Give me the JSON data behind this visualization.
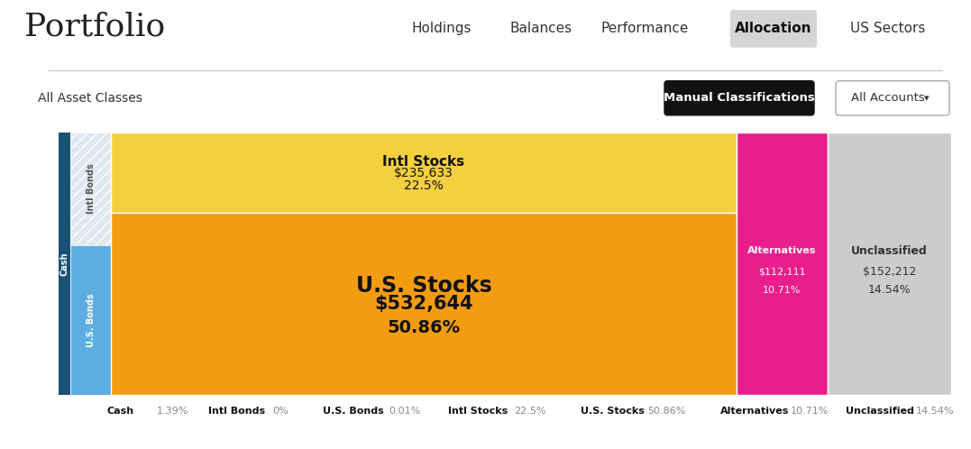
{
  "title": "Portfolio",
  "nav_items": [
    "Holdings",
    "Balances",
    "Performance",
    "Allocation",
    "US Sectors"
  ],
  "active_nav": "Allocation",
  "header_left": "All Asset Classes",
  "header_btn1": "Manual Classifications",
  "header_btn2": "All Accounts",
  "segments": [
    {
      "name": "Cash",
      "pct": 1.39,
      "value": null,
      "color": "#1a5276",
      "orientation": "vertical",
      "label_color": "white"
    },
    {
      "name": "Intl Bonds",
      "pct": 0.0,
      "value": null,
      "color": "#d6e4f0",
      "pattern": "///",
      "orientation": "vertical",
      "label_color": "#555555"
    },
    {
      "name": "U.S. Bonds",
      "pct": 0.01,
      "value": null,
      "color": "#5dade2",
      "orientation": "vertical",
      "label_color": "white"
    },
    {
      "name": "Intl Stocks",
      "pct": 22.5,
      "value": "$235,633",
      "color": "#f4d03f",
      "orientation": "horizontal_top",
      "label_color": "#222222"
    },
    {
      "name": "U.S. Stocks",
      "pct": 50.86,
      "value": "$532,644",
      "color": "#f39c12",
      "orientation": "horizontal_bottom",
      "label_color": "#111111"
    },
    {
      "name": "Alternatives",
      "pct": 10.71,
      "value": "$112,111",
      "color": "#e91e8c",
      "orientation": "vertical_right",
      "label_color": "white"
    },
    {
      "name": "Unclassified",
      "pct": 14.54,
      "value": "$152,212",
      "color": "#cccccc",
      "orientation": "vertical_right2",
      "label_color": "#333333"
    }
  ],
  "bottom_labels": [
    {
      "name": "Cash",
      "pct": "1.39%",
      "color": "#1a5276"
    },
    {
      "name": "Intl Bonds",
      "pct": "0%",
      "color": "#d6e4f0"
    },
    {
      "name": "U.S. Bonds",
      "pct": "0.01%",
      "color": "#5dade2"
    },
    {
      "name": "Intl Stocks",
      "pct": "22.5%",
      "color": "#f4d03f"
    },
    {
      "name": "U.S. Stocks",
      "pct": "50.86%",
      "color": "#f39c12"
    },
    {
      "name": "Alternatives",
      "pct": "10.71%",
      "color": "#e91e8c"
    },
    {
      "name": "Unclassified",
      "pct": "14.54%",
      "color": "#cccccc"
    }
  ],
  "bg_color": "#ffffff",
  "chart_bg": "#f5f5f5",
  "bottom_bar_bg": "#eeeeee"
}
